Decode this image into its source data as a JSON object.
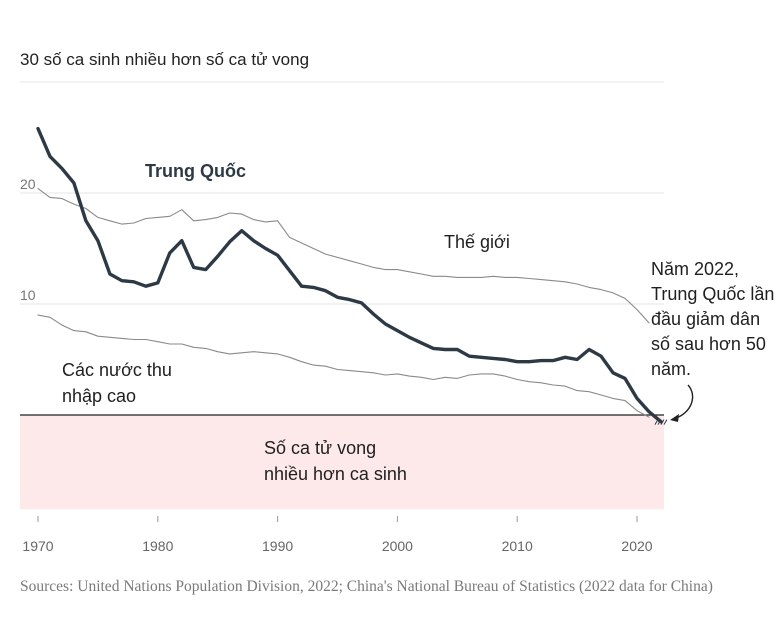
{
  "chart_data": {
    "type": "line",
    "title": "30 số ca sinh nhiều hơn số ca tử vong",
    "xlabel": "",
    "ylabel": "",
    "xlim": [
      1970,
      2022
    ],
    "ylim": [
      -8.5,
      30
    ],
    "x_ticks": [
      1970,
      1980,
      1990,
      2000,
      2010,
      2020
    ],
    "y_ticks": [
      10,
      20
    ],
    "grid": true,
    "negative_region_label": "Số ca tử vong nhiều hơn ca sinh",
    "series": [
      {
        "name": "Trung Quốc",
        "color": "#2d3a46",
        "x": [
          1970,
          1971,
          1972,
          1973,
          1974,
          1975,
          1976,
          1977,
          1978,
          1979,
          1980,
          1981,
          1982,
          1983,
          1984,
          1985,
          1986,
          1987,
          1988,
          1989,
          1990,
          1991,
          1992,
          1993,
          1994,
          1995,
          1996,
          1997,
          1998,
          1999,
          2000,
          2001,
          2002,
          2003,
          2004,
          2005,
          2006,
          2007,
          2008,
          2009,
          2010,
          2011,
          2012,
          2013,
          2014,
          2015,
          2016,
          2017,
          2018,
          2019,
          2020,
          2021,
          2022
        ],
        "values": [
          25.8,
          23.3,
          22.2,
          20.9,
          17.5,
          15.7,
          12.7,
          12.1,
          12.0,
          11.6,
          11.9,
          14.6,
          15.7,
          13.3,
          13.1,
          14.3,
          15.6,
          16.6,
          15.7,
          15.0,
          14.4,
          13.0,
          11.6,
          11.5,
          11.2,
          10.6,
          10.4,
          10.1,
          9.1,
          8.2,
          7.6,
          7.0,
          6.5,
          6.0,
          5.9,
          5.9,
          5.3,
          5.2,
          5.1,
          5.0,
          4.8,
          4.8,
          4.9,
          4.9,
          5.2,
          5.0,
          5.9,
          5.3,
          3.8,
          3.3,
          1.5,
          0.3,
          -0.6
        ]
      },
      {
        "name": "Thế giới",
        "color": "#8a8a8a",
        "x": [
          1970,
          1971,
          1972,
          1973,
          1974,
          1975,
          1976,
          1977,
          1978,
          1979,
          1980,
          1981,
          1982,
          1983,
          1984,
          1985,
          1986,
          1987,
          1988,
          1989,
          1990,
          1991,
          1992,
          1993,
          1994,
          1995,
          1996,
          1997,
          1998,
          1999,
          2000,
          2001,
          2002,
          2003,
          2004,
          2005,
          2006,
          2007,
          2008,
          2009,
          2010,
          2011,
          2012,
          2013,
          2014,
          2015,
          2016,
          2017,
          2018,
          2019,
          2020,
          2021
        ],
        "values": [
          20.4,
          19.6,
          19.5,
          19.0,
          18.6,
          17.8,
          17.5,
          17.2,
          17.3,
          17.7,
          17.8,
          17.9,
          18.5,
          17.5,
          17.6,
          17.8,
          18.2,
          18.1,
          17.6,
          17.4,
          17.5,
          16.0,
          15.5,
          15.0,
          14.5,
          14.2,
          13.9,
          13.6,
          13.3,
          13.1,
          13.1,
          12.9,
          12.7,
          12.5,
          12.5,
          12.4,
          12.4,
          12.4,
          12.5,
          12.4,
          12.4,
          12.3,
          12.2,
          12.1,
          12.0,
          11.8,
          11.5,
          11.3,
          11.0,
          10.5,
          9.5,
          8.3
        ]
      },
      {
        "name": "Các nước thu nhập cao",
        "color": "#8a8a8a",
        "x": [
          1970,
          1971,
          1972,
          1973,
          1974,
          1975,
          1976,
          1977,
          1978,
          1979,
          1980,
          1981,
          1982,
          1983,
          1984,
          1985,
          1986,
          1987,
          1988,
          1989,
          1990,
          1991,
          1992,
          1993,
          1994,
          1995,
          1996,
          1997,
          1998,
          1999,
          2000,
          2001,
          2002,
          2003,
          2004,
          2005,
          2006,
          2007,
          2008,
          2009,
          2010,
          2011,
          2012,
          2013,
          2014,
          2015,
          2016,
          2017,
          2018,
          2019,
          2020,
          2021
        ],
        "values": [
          9.0,
          8.8,
          8.1,
          7.6,
          7.5,
          7.1,
          7.0,
          6.9,
          6.8,
          6.8,
          6.6,
          6.4,
          6.4,
          6.1,
          6.0,
          5.7,
          5.5,
          5.6,
          5.7,
          5.6,
          5.5,
          5.2,
          4.8,
          4.5,
          4.4,
          4.1,
          4.0,
          3.9,
          3.8,
          3.6,
          3.7,
          3.5,
          3.4,
          3.2,
          3.4,
          3.3,
          3.6,
          3.7,
          3.7,
          3.5,
          3.2,
          3.0,
          2.9,
          2.7,
          2.6,
          2.2,
          2.1,
          1.8,
          1.5,
          1.3,
          0.4,
          -0.2
        ]
      }
    ]
  },
  "annotations": {
    "china": "Trung Quốc",
    "world": "Thế giới",
    "high_income_line1": "Các nước thu",
    "high_income_line2": "nhập cao",
    "negative_line1": "Số ca tử vong",
    "negative_line2": "nhiều hơn ca sinh",
    "callout_lines": [
      "Năm 2022,",
      "Trung Quốc lần",
      "đầu giảm dân",
      "số sau hơn 50",
      "năm."
    ]
  },
  "axis": {
    "top_label": "30 số ca sinh nhiều hơn số ca tử vong"
  },
  "source": "Sources: United Nations Population Division, 2022; China's National Bureau of Statistics (2022 data for China)",
  "colors": {
    "negative_fill": "#fde9e9",
    "china": "#2d3a46",
    "other": "#8a8a8a"
  }
}
